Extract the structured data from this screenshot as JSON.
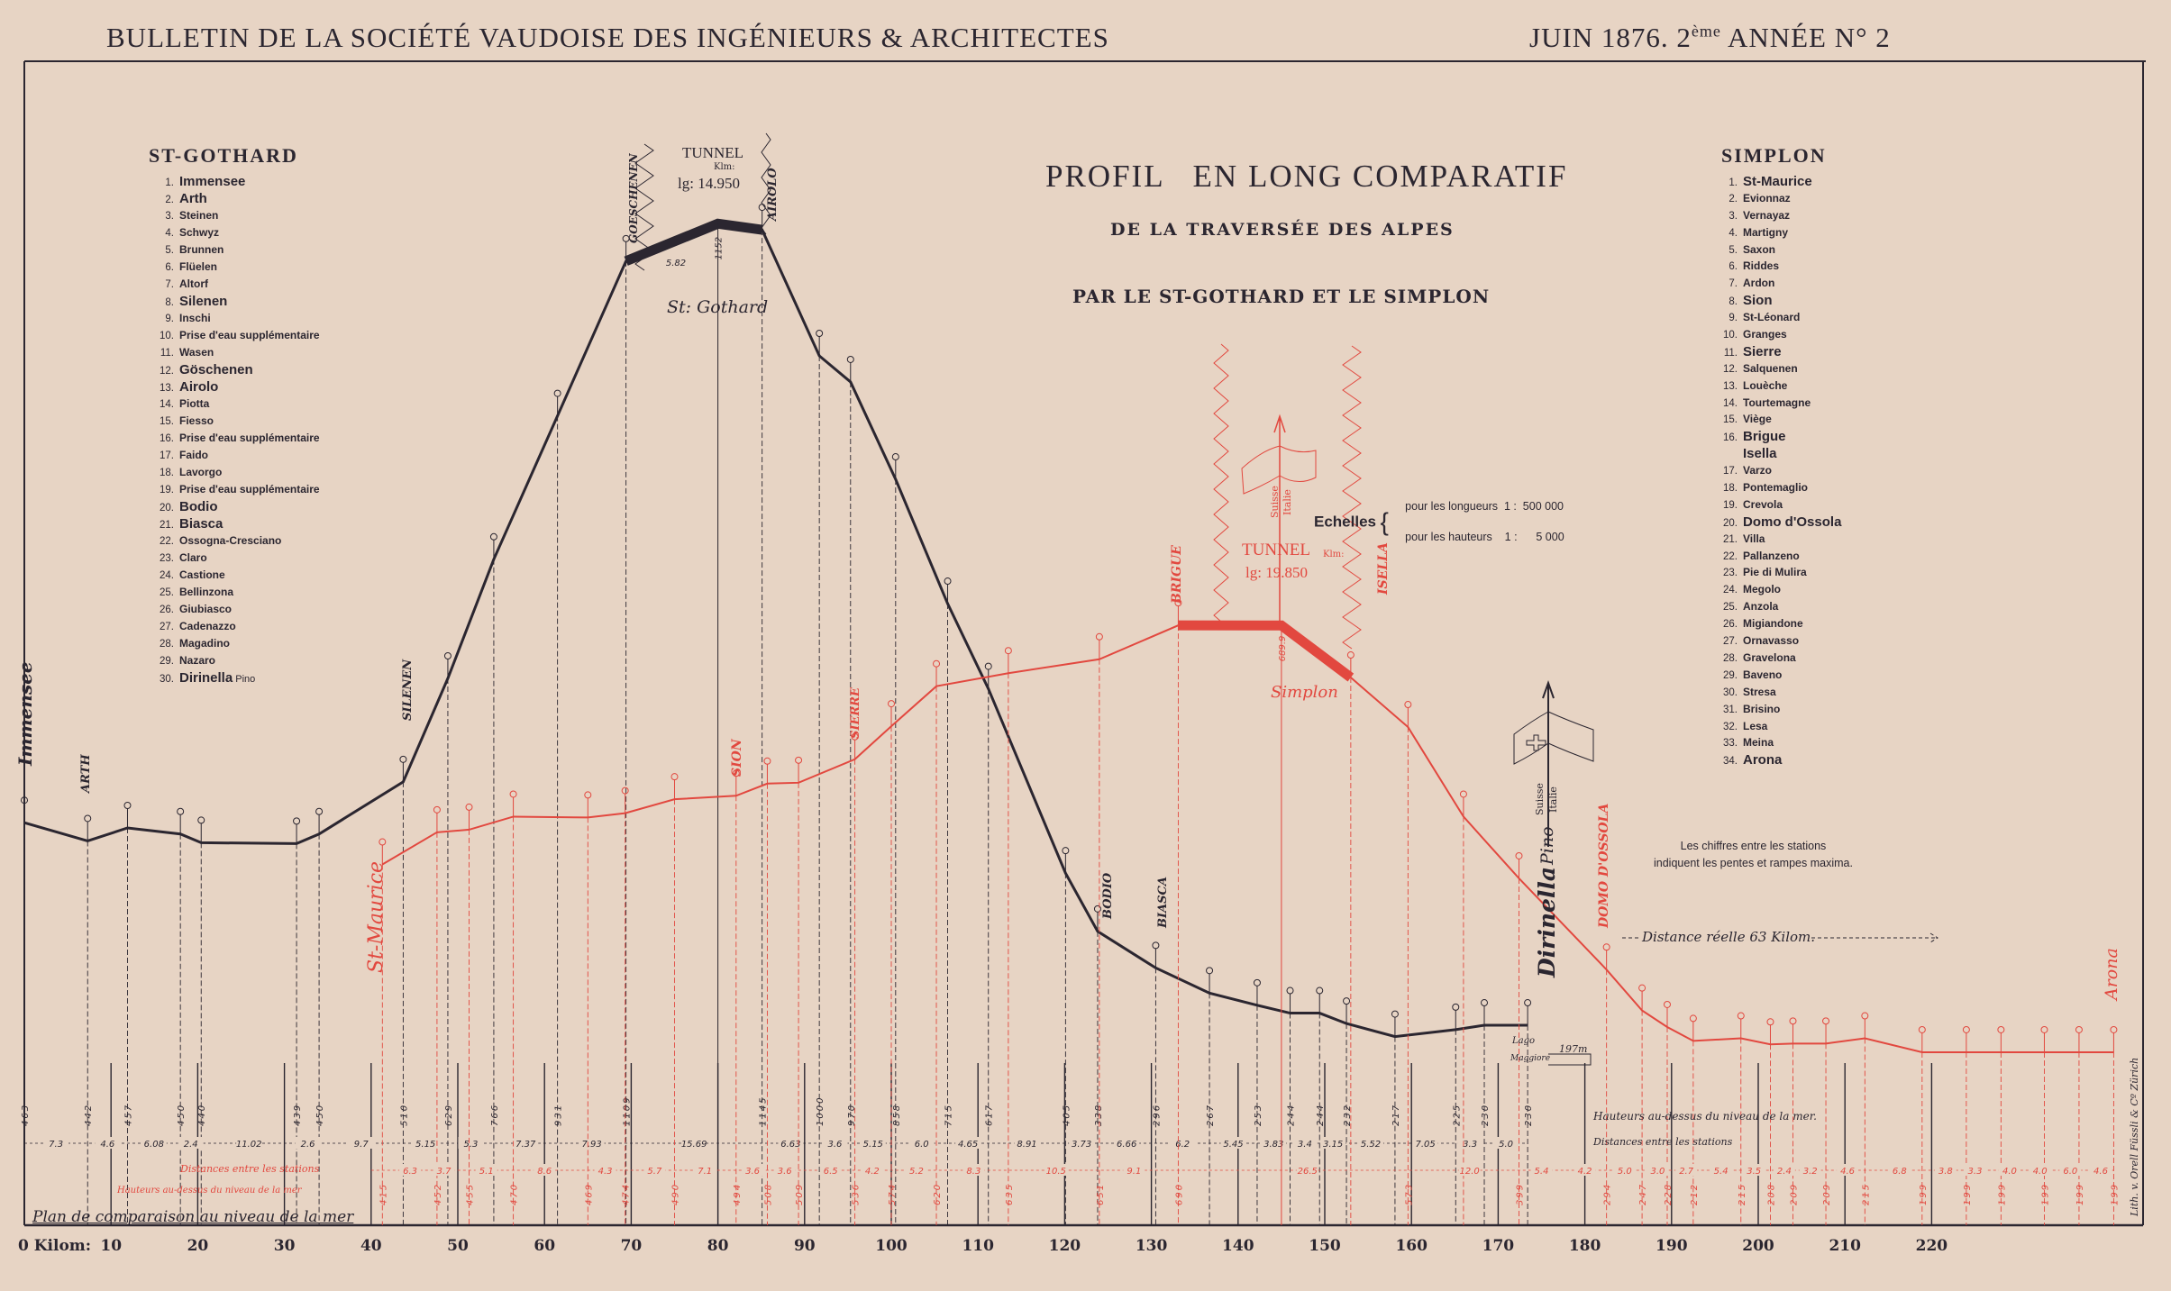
{
  "header": {
    "left": "BULLETIN DE LA SOCIÉTÉ VAUDOISE DES INGÉNIEURS & ARCHITECTES",
    "right_date": "JUIN 1876. 2",
    "right_sup": "ème",
    "right_rest": " ANNÉE N° 2"
  },
  "title": {
    "line1": "PROFIL   EN LONG COMPARATIF",
    "line2": "DE LA TRAVERSÉE DES ALPES",
    "line3": "PAR LE ST-GOTHARD ET LE SIMPLON"
  },
  "gothard_list": {
    "heading": "ST-GOTHARD",
    "items": [
      {
        "n": "1.",
        "name": "Immensee",
        "bold": true
      },
      {
        "n": "2.",
        "name": "Arth",
        "bold": true
      },
      {
        "n": "3.",
        "name": "Steinen"
      },
      {
        "n": "4.",
        "name": "Schwyz"
      },
      {
        "n": "5.",
        "name": "Brunnen"
      },
      {
        "n": "6.",
        "name": "Flüelen"
      },
      {
        "n": "7.",
        "name": "Altorf"
      },
      {
        "n": "8.",
        "name": "Silenen",
        "bold": true
      },
      {
        "n": "9.",
        "name": "Inschi"
      },
      {
        "n": "10.",
        "name": "Prise d'eau supplémentaire"
      },
      {
        "n": "11.",
        "name": "Wasen"
      },
      {
        "n": "12.",
        "name": "Göschenen",
        "bold": true
      },
      {
        "n": "13.",
        "name": "Airolo",
        "bold": true
      },
      {
        "n": "14.",
        "name": "Piotta"
      },
      {
        "n": "15.",
        "name": "Fiesso"
      },
      {
        "n": "16.",
        "name": "Prise d'eau supplémentaire"
      },
      {
        "n": "17.",
        "name": "Faido"
      },
      {
        "n": "18.",
        "name": "Lavorgo"
      },
      {
        "n": "19.",
        "name": "Prise d'eau supplémentaire"
      },
      {
        "n": "20.",
        "name": "Bodio",
        "bold": true
      },
      {
        "n": "21.",
        "name": "Biasca",
        "bold": true
      },
      {
        "n": "22.",
        "name": "Ossogna-Cresciano"
      },
      {
        "n": "23.",
        "name": "Claro"
      },
      {
        "n": "24.",
        "name": "Castione"
      },
      {
        "n": "25.",
        "name": "Bellinzona"
      },
      {
        "n": "26.",
        "name": "Giubiasco"
      },
      {
        "n": "27.",
        "name": "Cadenazzo"
      },
      {
        "n": "28.",
        "name": "Magadino"
      },
      {
        "n": "29.",
        "name": "Nazaro"
      },
      {
        "n": "30.",
        "name": "Dirinella",
        "bold": true,
        "extra": "Pino"
      }
    ]
  },
  "simplon_list": {
    "heading": "SIMPLON",
    "items": [
      {
        "n": "1.",
        "name": "St-Maurice",
        "bold": true
      },
      {
        "n": "2.",
        "name": "Evionnaz"
      },
      {
        "n": "3.",
        "name": "Vernayaz"
      },
      {
        "n": "4.",
        "name": "Martigny"
      },
      {
        "n": "5.",
        "name": "Saxon"
      },
      {
        "n": "6.",
        "name": "Riddes"
      },
      {
        "n": "7.",
        "name": "Ardon"
      },
      {
        "n": "8.",
        "name": "Sion",
        "bold": true
      },
      {
        "n": "9.",
        "name": "St-Léonard"
      },
      {
        "n": "10.",
        "name": "Granges"
      },
      {
        "n": "11.",
        "name": "Sierre",
        "bold": true
      },
      {
        "n": "12.",
        "name": "Salquenen"
      },
      {
        "n": "13.",
        "name": "Louèche"
      },
      {
        "n": "14.",
        "name": "Tourtemagne"
      },
      {
        "n": "15.",
        "name": "Viège"
      },
      {
        "n": "16.",
        "name": "Brigue",
        "bold": true
      },
      {
        "n": "",
        "name": "Isella",
        "bold": true
      },
      {
        "n": "17.",
        "name": "Varzo"
      },
      {
        "n": "18.",
        "name": "Pontemaglio"
      },
      {
        "n": "19.",
        "name": "Crevola"
      },
      {
        "n": "20.",
        "name": "Domo d'Ossola",
        "bold": true
      },
      {
        "n": "21.",
        "name": "Villa"
      },
      {
        "n": "22.",
        "name": "Pallanzeno"
      },
      {
        "n": "23.",
        "name": "Pie di Mulira"
      },
      {
        "n": "24.",
        "name": "Megolo"
      },
      {
        "n": "25.",
        "name": "Anzola"
      },
      {
        "n": "26.",
        "name": "Migiandone"
      },
      {
        "n": "27.",
        "name": "Ornavasso"
      },
      {
        "n": "28.",
        "name": "Gravelona"
      },
      {
        "n": "29.",
        "name": "Baveno"
      },
      {
        "n": "30.",
        "name": "Stresa"
      },
      {
        "n": "31.",
        "name": "Brisino"
      },
      {
        "n": "32.",
        "name": "Lesa"
      },
      {
        "n": "33.",
        "name": "Meina"
      },
      {
        "n": "34.",
        "name": "Arona",
        "bold": true
      }
    ]
  },
  "scales": {
    "label": "Echelles",
    "lengths": "pour les longueurs  1 :  500 000",
    "heights": "pour les hauteurs    1 :      5 000"
  },
  "note": {
    "line1": "Les chiffres entre les stations",
    "line2": "indiquent les pentes et rampes maxima."
  },
  "annotations": {
    "gothard_tunnel": "TUNNEL",
    "gothard_tunnel_unit": "Klm:",
    "gothard_tunnel_length": "lg: 14.950",
    "gothard_name": "St: Gothard",
    "simplon_tunnel": "TUNNEL",
    "simplon_tunnel_unit": "Klm:",
    "simplon_tunnel_length": "lg: 19.850",
    "simplon_name": "Simplon",
    "suisse": "Suisse",
    "italie": "Italie",
    "real_distance": "Distance réelle 63 Kilom.",
    "lago": "Lago",
    "maggiore": "Maggiore",
    "lago_height": "197m",
    "heights_caption_black": "Hauteurs au-dessus du niveau de la mer.",
    "distances_caption_black": "Distances entre les stations",
    "distances_caption_red": "Distances entre les stations",
    "heights_caption_red": "Hauteurs au-dessus du niveau de la mer",
    "datum": "Plan de comparaison au niveau de la mer",
    "credit": "Lith. v. Orell Füssli & Cº Zürich",
    "black_station_labels": {
      "immensee": "Immensee",
      "arth": "ARTH",
      "silenen": "SILENEN",
      "goeschenen": "GOESCHENEN",
      "airolo": "AIROLO",
      "bodio": "BODIO",
      "biasca": "BIASCA",
      "dirinella": "Dirinella",
      "pino": "Pino"
    },
    "red_station_labels": {
      "st_maurice": "St-Maurice",
      "sion": "SION",
      "sierre": "SIERRE",
      "brigue": "BRIGUE",
      "isella": "ISELLA",
      "domo": "DOMO D'OSSOLA",
      "arona": "Arona"
    }
  },
  "chart_data": {
    "type": "line",
    "title": "PROFIL EN LONG COMPARATIF DE LA TRAVERSÉE DES ALPES PAR LE ST-GOTHARD ET LE SIMPLON",
    "xlabel": "Kilom:",
    "x_ticks": [
      "0 Kilom:",
      "10",
      "20",
      "30",
      "40",
      "50",
      "60",
      "70",
      "80",
      "90",
      "100",
      "110",
      "120",
      "130",
      "140",
      "150",
      "160",
      "170",
      "180",
      "190",
      "200",
      "210",
      "220"
    ],
    "x_tick_values": [
      0,
      10,
      20,
      30,
      40,
      50,
      60,
      70,
      80,
      90,
      100,
      110,
      120,
      130,
      140,
      150,
      160,
      170,
      180,
      190,
      200,
      210,
      220
    ],
    "xlim": [
      0,
      245
    ],
    "ylim": [
      0,
      1400
    ],
    "y_unit": "m above sea level",
    "colors": {
      "gothard": "#2b2630",
      "simplon": "#e2483f",
      "paper": "#e7d4c4"
    },
    "series": [
      {
        "name": "St-Gothard",
        "color": "#2b2630",
        "station_km": [
          0,
          7.3,
          11.9,
          18.0,
          20.4,
          31.4,
          34.0,
          43.7,
          48.85,
          54.15,
          61.5,
          69.4,
          85.1,
          91.7,
          95.3,
          100.5,
          106.5,
          111.2,
          120.1,
          123.8,
          130.5,
          136.7,
          142.2,
          146.0,
          149.4,
          152.5,
          158.1,
          165.1,
          168.4,
          173.4
        ],
        "station_elev": [
          463,
          442,
          457,
          450,
          440,
          439,
          450,
          510,
          629,
          766,
          931,
          1109,
          1145,
          1000,
          970,
          858,
          715,
          617,
          405,
          338,
          296,
          267,
          253,
          244,
          244,
          232,
          217,
          225,
          230,
          230
        ],
        "elev_labels": [
          "463",
          "442",
          "457",
          "450",
          "440",
          "439",
          "450",
          "510",
          "629",
          "766",
          "931",
          "1109",
          "1145",
          "1000",
          "970",
          "858",
          "715",
          "617",
          "405",
          "338",
          "296",
          "267",
          "253",
          "244",
          "244",
          "232",
          "217",
          "225",
          "230",
          "230"
        ],
        "distances": [
          "7.3",
          "4.6",
          "6.08",
          "2.4",
          "11.02",
          "2.6",
          "9.7",
          "5.15",
          "5.3",
          "7.37",
          "7.93",
          "15.69",
          "6.63",
          "3.6",
          "5.15",
          "6.0",
          "4.65",
          "8.91",
          "3.73",
          "6.66",
          "6.2",
          "5.45",
          "3.83",
          "3.4",
          "3.15",
          "5.52",
          "7.05",
          "3.3",
          "5.0"
        ],
        "tunnel": {
          "start_km": 69.4,
          "summit_km": 80,
          "summit_elev": 1152,
          "summit_label": "1152",
          "end_km": 85.1,
          "gradient_label": "5.82"
        }
      },
      {
        "name": "Simplon",
        "color": "#e2483f",
        "station_km": [
          41.3,
          47.6,
          51.3,
          56.4,
          65.0,
          69.3,
          75.0,
          82.1,
          85.7,
          89.3,
          95.8,
          100.0,
          105.2,
          113.5,
          124.0,
          133.1,
          153.0,
          159.6,
          166.0,
          172.4,
          182.5,
          186.6,
          189.5,
          192.5,
          198.0,
          201.4,
          204.0,
          207.8,
          212.3,
          218.9,
          224.0,
          228.0,
          233.0,
          237.0,
          241.0
        ],
        "station_elev": [
          415,
          452,
          455,
          470,
          469,
          474,
          490,
          494,
          508,
          509,
          536,
          574,
          620,
          635,
          651,
          690,
          630,
          573,
          470,
          399,
          294,
          247,
          228,
          212,
          215,
          208,
          209,
          209,
          215,
          199,
          199,
          199,
          199,
          199,
          199
        ],
        "elev_labels": [
          "415",
          "452",
          "455",
          "470",
          "469",
          "474",
          "490",
          "494",
          "508",
          "509",
          "536",
          "574",
          "620",
          "635",
          "651",
          "690",
          "",
          "573",
          "",
          "399",
          "294",
          "247",
          "228",
          "212",
          "215",
          "208",
          "209",
          "209",
          "215",
          "199",
          "199",
          "199",
          "199",
          "199",
          "199"
        ],
        "distance_labels": [
          {
            "km": 44.5,
            "v": "6.3"
          },
          {
            "km": 48.4,
            "v": "3.7"
          },
          {
            "km": 53.3,
            "v": "5.1"
          },
          {
            "km": 60.0,
            "v": "8.6"
          },
          {
            "km": 67.0,
            "v": "4.3"
          },
          {
            "km": 72.7,
            "v": "5.7"
          },
          {
            "km": 78.5,
            "v": "7.1"
          },
          {
            "km": 84.0,
            "v": "3.6"
          },
          {
            "km": 87.7,
            "v": "3.6"
          },
          {
            "km": 93.0,
            "v": "6.5"
          },
          {
            "km": 97.8,
            "v": "4.2"
          },
          {
            "km": 102.9,
            "v": "5.2"
          },
          {
            "km": 109.5,
            "v": "8.3"
          },
          {
            "km": 119.0,
            "v": "10.5"
          },
          {
            "km": 128.0,
            "v": "9.1"
          },
          {
            "km": 148.0,
            "v": "26.5"
          },
          {
            "km": 166.7,
            "v": "12.0"
          },
          {
            "km": 175.0,
            "v": "5.4"
          },
          {
            "km": 180.0,
            "v": "4.2"
          },
          {
            "km": 184.6,
            "v": "5.0"
          },
          {
            "km": 188.4,
            "v": "3.0"
          },
          {
            "km": 191.7,
            "v": "2.7"
          },
          {
            "km": 195.7,
            "v": "5.4"
          },
          {
            "km": 199.5,
            "v": "3.5"
          },
          {
            "km": 203.0,
            "v": "2.4"
          },
          {
            "km": 206.0,
            "v": "3.2"
          },
          {
            "km": 210.3,
            "v": "4.6"
          },
          {
            "km": 216.3,
            "v": "6.8"
          },
          {
            "km": 221.6,
            "v": "3.8"
          },
          {
            "km": 225.0,
            "v": "3.3"
          },
          {
            "km": 229.0,
            "v": "4.0"
          },
          {
            "km": 232.5,
            "v": "4.0"
          },
          {
            "km": 236.0,
            "v": "6.0"
          },
          {
            "km": 239.5,
            "v": "4.6"
          }
        ],
        "tunnel": {
          "start_km": 133.1,
          "summit_km": 145.0,
          "summit_elev": 689.9,
          "summit_label": "689.9",
          "end_km": 153.0
        }
      }
    ]
  }
}
